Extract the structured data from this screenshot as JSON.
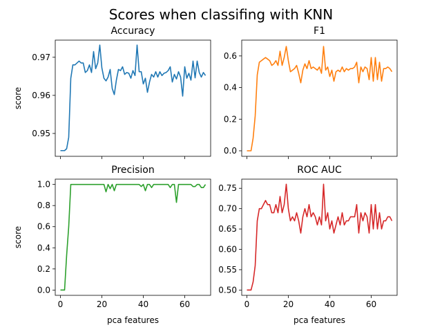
{
  "figure_title": "Scores when classifing with KNN",
  "chart_data": [
    {
      "type": "line",
      "title": "Accuracy",
      "xlabel": "",
      "ylabel": "score",
      "color": "#1f77b4",
      "xlim": [
        -2.5,
        72.5
      ],
      "ylim": [
        0.944,
        0.9745
      ],
      "yticks": [
        0.95,
        0.96,
        0.97
      ],
      "ytick_labels": [
        "0.95",
        "0.96",
        "0.97"
      ],
      "xticks": [
        0,
        20,
        40,
        60
      ],
      "show_xtick_labels": false,
      "x": [
        0,
        1,
        2,
        3,
        4,
        5,
        6,
        7,
        8,
        9,
        10,
        11,
        12,
        13,
        14,
        15,
        16,
        17,
        18,
        19,
        20,
        21,
        22,
        23,
        24,
        25,
        26,
        27,
        28,
        29,
        30,
        31,
        32,
        33,
        34,
        35,
        36,
        37,
        38,
        39,
        40,
        41,
        42,
        43,
        44,
        45,
        46,
        47,
        48,
        49,
        50,
        51,
        52,
        53,
        54,
        55,
        56,
        57,
        58,
        59,
        60,
        61,
        62,
        63,
        64,
        65,
        66,
        67,
        68,
        69,
        70
      ],
      "values": [
        0.9455,
        0.9455,
        0.9455,
        0.946,
        0.949,
        0.9645,
        0.968,
        0.968,
        0.9685,
        0.969,
        0.9685,
        0.9685,
        0.966,
        0.9665,
        0.968,
        0.966,
        0.9715,
        0.967,
        0.9685,
        0.9732,
        0.9672,
        0.9645,
        0.9638,
        0.9648,
        0.9668,
        0.9618,
        0.9602,
        0.964,
        0.9668,
        0.9665,
        0.9675,
        0.9655,
        0.966,
        0.9658,
        0.9645,
        0.9665,
        0.9652,
        0.9732,
        0.9662,
        0.9662,
        0.963,
        0.9645,
        0.9608,
        0.9635,
        0.9655,
        0.9648,
        0.9662,
        0.9648,
        0.9662,
        0.9652,
        0.9658,
        0.966,
        0.9665,
        0.9675,
        0.9635,
        0.9655,
        0.9643,
        0.9662,
        0.9648,
        0.9598,
        0.9675,
        0.9645,
        0.9658,
        0.964,
        0.969,
        0.9646,
        0.969,
        0.966,
        0.9648,
        0.966,
        0.9652
      ]
    },
    {
      "type": "line",
      "title": "F1",
      "xlabel": "",
      "ylabel": "",
      "color": "#ff7f0e",
      "xlim": [
        -2.5,
        72.5
      ],
      "ylim": [
        -0.035,
        0.7
      ],
      "yticks": [
        0.0,
        0.2,
        0.4,
        0.6
      ],
      "ytick_labels": [
        "0.0",
        "0.2",
        "0.4",
        "0.6"
      ],
      "xticks": [
        0,
        20,
        40,
        60
      ],
      "show_xtick_labels": false,
      "x": [
        0,
        1,
        2,
        3,
        4,
        5,
        6,
        7,
        8,
        9,
        10,
        11,
        12,
        13,
        14,
        15,
        16,
        17,
        18,
        19,
        20,
        21,
        22,
        23,
        24,
        25,
        26,
        27,
        28,
        29,
        30,
        31,
        32,
        33,
        34,
        35,
        36,
        37,
        38,
        39,
        40,
        41,
        42,
        43,
        44,
        45,
        46,
        47,
        48,
        49,
        50,
        51,
        52,
        53,
        54,
        55,
        56,
        57,
        58,
        59,
        60,
        61,
        62,
        63,
        64,
        65,
        66,
        67,
        68,
        69,
        70
      ],
      "values": [
        0.0,
        0.0,
        0.0,
        0.08,
        0.22,
        0.48,
        0.56,
        0.57,
        0.58,
        0.59,
        0.58,
        0.57,
        0.54,
        0.55,
        0.57,
        0.54,
        0.63,
        0.54,
        0.59,
        0.66,
        0.57,
        0.5,
        0.51,
        0.52,
        0.54,
        0.49,
        0.43,
        0.51,
        0.55,
        0.52,
        0.57,
        0.52,
        0.53,
        0.52,
        0.51,
        0.53,
        0.49,
        0.66,
        0.51,
        0.53,
        0.47,
        0.51,
        0.44,
        0.5,
        0.51,
        0.5,
        0.53,
        0.5,
        0.52,
        0.51,
        0.52,
        0.52,
        0.53,
        0.56,
        0.43,
        0.53,
        0.5,
        0.53,
        0.52,
        0.45,
        0.59,
        0.44,
        0.59,
        0.45,
        0.56,
        0.44,
        0.52,
        0.52,
        0.53,
        0.52,
        0.5
      ]
    },
    {
      "type": "line",
      "title": "Precision",
      "xlabel": "pca features",
      "ylabel": "score",
      "color": "#2ca02c",
      "xlim": [
        -2.5,
        72.5
      ],
      "ylim": [
        -0.05,
        1.05
      ],
      "yticks": [
        0.0,
        0.2,
        0.4,
        0.6,
        0.8,
        1.0
      ],
      "ytick_labels": [
        "0.0",
        "0.2",
        "0.4",
        "0.6",
        "0.8",
        "1.0"
      ],
      "xticks": [
        0,
        20,
        40,
        60
      ],
      "xtick_labels": [
        "0",
        "20",
        "40",
        "60"
      ],
      "show_xtick_labels": true,
      "x": [
        0,
        1,
        2,
        3,
        4,
        5,
        6,
        7,
        8,
        9,
        10,
        11,
        12,
        13,
        14,
        15,
        16,
        17,
        18,
        19,
        20,
        21,
        22,
        23,
        24,
        25,
        26,
        27,
        28,
        29,
        30,
        31,
        32,
        33,
        34,
        35,
        36,
        37,
        38,
        39,
        40,
        41,
        42,
        43,
        44,
        45,
        46,
        47,
        48,
        49,
        50,
        51,
        52,
        53,
        54,
        55,
        56,
        57,
        58,
        59,
        60,
        61,
        62,
        63,
        64,
        65,
        66,
        67,
        68,
        69,
        70
      ],
      "values": [
        0.0,
        0.0,
        0.0,
        0.33,
        0.6,
        1.0,
        1.0,
        1.0,
        1.0,
        1.0,
        1.0,
        1.0,
        1.0,
        1.0,
        1.0,
        1.0,
        1.0,
        1.0,
        1.0,
        1.0,
        1.0,
        1.0,
        0.93,
        1.0,
        0.96,
        1.0,
        0.94,
        1.0,
        1.0,
        1.0,
        1.0,
        1.0,
        1.0,
        1.0,
        1.0,
        1.0,
        1.0,
        1.0,
        1.0,
        0.98,
        1.0,
        0.94,
        1.0,
        1.0,
        0.97,
        1.0,
        1.0,
        1.0,
        1.0,
        1.0,
        1.0,
        1.0,
        1.0,
        0.97,
        1.0,
        1.0,
        0.83,
        1.0,
        1.0,
        1.0,
        1.0,
        1.0,
        1.0,
        1.0,
        0.98,
        0.98,
        1.0,
        1.0,
        0.97,
        0.97,
        1.0
      ]
    },
    {
      "type": "line",
      "title": "ROC AUC",
      "xlabel": "pca features",
      "ylabel": "",
      "color": "#d62728",
      "xlim": [
        -2.5,
        72.5
      ],
      "ylim": [
        0.487,
        0.7725
      ],
      "yticks": [
        0.5,
        0.55,
        0.6,
        0.65,
        0.7,
        0.75
      ],
      "ytick_labels": [
        "0.50",
        "0.55",
        "0.60",
        "0.65",
        "0.70",
        "0.75"
      ],
      "xticks": [
        0,
        20,
        40,
        60
      ],
      "xtick_labels": [
        "0",
        "20",
        "40",
        "60"
      ],
      "show_xtick_labels": true,
      "x": [
        0,
        1,
        2,
        3,
        4,
        5,
        6,
        7,
        8,
        9,
        10,
        11,
        12,
        13,
        14,
        15,
        16,
        17,
        18,
        19,
        20,
        21,
        22,
        23,
        24,
        25,
        26,
        27,
        28,
        29,
        30,
        31,
        32,
        33,
        34,
        35,
        36,
        37,
        38,
        39,
        40,
        41,
        42,
        43,
        44,
        45,
        46,
        47,
        48,
        49,
        50,
        51,
        52,
        53,
        54,
        55,
        56,
        57,
        58,
        59,
        60,
        61,
        62,
        63,
        64,
        65,
        66,
        67,
        68,
        69,
        70
      ],
      "values": [
        0.5,
        0.5,
        0.5,
        0.52,
        0.56,
        0.67,
        0.7,
        0.7,
        0.71,
        0.72,
        0.71,
        0.71,
        0.69,
        0.69,
        0.71,
        0.69,
        0.73,
        0.69,
        0.71,
        0.76,
        0.7,
        0.67,
        0.68,
        0.67,
        0.69,
        0.67,
        0.64,
        0.68,
        0.7,
        0.68,
        0.71,
        0.68,
        0.69,
        0.68,
        0.66,
        0.68,
        0.66,
        0.76,
        0.67,
        0.69,
        0.65,
        0.67,
        0.64,
        0.66,
        0.68,
        0.66,
        0.69,
        0.66,
        0.67,
        0.67,
        0.68,
        0.68,
        0.68,
        0.71,
        0.64,
        0.69,
        0.67,
        0.69,
        0.68,
        0.64,
        0.71,
        0.65,
        0.71,
        0.65,
        0.69,
        0.65,
        0.67,
        0.67,
        0.68,
        0.68,
        0.67
      ]
    }
  ]
}
